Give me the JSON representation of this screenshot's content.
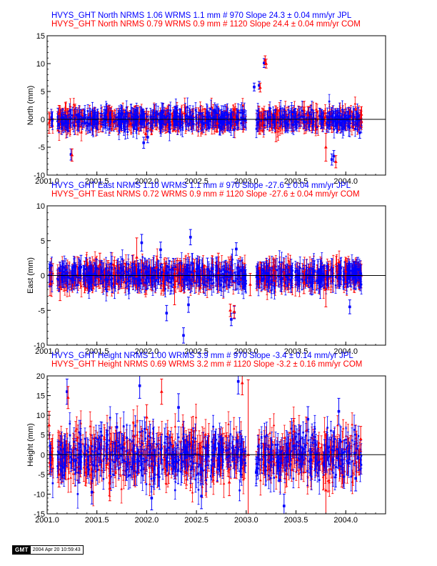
{
  "colors": {
    "jpl": "#0000ff",
    "com": "#ff0000",
    "axis": "#000000",
    "background": "#ffffff"
  },
  "stamp": {
    "logo": "GMT",
    "timestamp": "2004 Apr 20 10:59:43"
  },
  "chart_data": [
    {
      "type": "scatter",
      "component": "north",
      "titles": {
        "jpl": "HVYS_GHT North NRMS 1.06 WRMS  1.1 mm # 970 Slope   24.3 ±  0.04 mm/yr JPL",
        "com": "HVYS_GHT North NRMS 0.79 WRMS  0.9 mm # 1120 Slope   24.4 ±  0.04 mm/yr COM"
      },
      "ylabel": "North (mm)",
      "xlim": [
        2001.0,
        2004.4
      ],
      "ylim": [
        -10,
        15
      ],
      "xticks": [
        2001.0,
        2001.5,
        2002.0,
        2002.5,
        2003.0,
        2003.5,
        2004.0
      ],
      "xtick_labels": [
        "2001.0",
        "2001.5",
        "2002.0",
        "2002.5",
        "2003.0",
        "2003.5",
        "2004.0"
      ],
      "yticks": [
        -10,
        -5,
        0,
        5,
        10,
        15
      ],
      "ytick_labels": [
        "-10",
        "-5",
        "0",
        "5",
        "10",
        "15"
      ],
      "grid": false,
      "series": [
        {
          "name": "JPL",
          "marker": "square",
          "x": [
            2001.11,
            2001.24,
            2001.58,
            2001.75,
            2001.97,
            2002.01,
            2002.3,
            2002.55,
            2002.77,
            2002.98,
            2003.08,
            2003.13,
            2003.18,
            2003.24,
            2003.4,
            2003.63,
            2003.86,
            2003.88,
            2004.03,
            2004.14
          ],
          "y": [
            0.4,
            -6.3,
            0.6,
            -0.4,
            -4.2,
            -3.2,
            0.5,
            -0.5,
            0.7,
            0.1,
            5.8,
            6.1,
            10.1,
            0.3,
            -0.6,
            0.4,
            -7.2,
            -6.6,
            0.5,
            -2.4
          ],
          "err": [
            1.6,
            1.0,
            1.7,
            1.6,
            1.0,
            1.0,
            1.7,
            1.6,
            1.7,
            1.6,
            0.7,
            0.7,
            0.8,
            1.7,
            1.6,
            1.7,
            1.0,
            1.0,
            1.6,
            1.0
          ]
        },
        {
          "name": "COM",
          "marker": "triangle",
          "x": [
            2001.02,
            2001.12,
            2001.25,
            2001.61,
            2001.99,
            2002.38,
            2002.71,
            2002.88,
            2003.14,
            2003.19,
            2003.2,
            2003.3,
            2003.62,
            2003.8,
            2003.9,
            2004.15
          ],
          "y": [
            -0.6,
            1.0,
            -6.4,
            0.9,
            -2.6,
            1.1,
            -0.7,
            0.4,
            5.7,
            10.6,
            10.0,
            -1.5,
            0.8,
            -5.0,
            -7.6,
            0.2
          ],
          "err": [
            1.9,
            1.5,
            1.1,
            1.5,
            1.1,
            1.5,
            1.5,
            1.5,
            0.8,
            0.8,
            0.8,
            2.5,
            1.5,
            2.5,
            1.1,
            1.5
          ]
        }
      ]
    },
    {
      "type": "scatter",
      "component": "east",
      "titles": {
        "jpl": "HVYS_GHT East NRMS 1.10 WRMS  1.1 mm # 970 Slope  -27.6 ±  0.04 mm/yr JPL",
        "com": "HVYS_GHT East NRMS 0.72 WRMS  0.9 mm # 1120 Slope  -27.6 ±  0.04 mm/yr COM"
      },
      "ylabel": "East (mm)",
      "xlim": [
        2001.0,
        2004.4
      ],
      "ylim": [
        -10,
        10
      ],
      "xticks": [
        2001.0,
        2001.5,
        2002.0,
        2002.5,
        2003.0,
        2003.5,
        2004.0
      ],
      "xtick_labels": [
        "2001.0",
        "2001.5",
        "2002.0",
        "2002.5",
        "2003.0",
        "2003.5",
        "2004.0"
      ],
      "yticks": [
        -10,
        -5,
        0,
        5,
        10
      ],
      "ytick_labels": [
        "-10",
        "-5",
        "0",
        "5",
        "10"
      ],
      "grid": false,
      "series": [
        {
          "name": "JPL",
          "marker": "square",
          "x": [
            2001.13,
            2001.34,
            2001.6,
            2001.95,
            2002.0,
            2002.14,
            2002.2,
            2002.37,
            2002.42,
            2002.44,
            2002.61,
            2002.85,
            2002.88,
            2002.9,
            2003.2,
            2003.45,
            2003.72,
            2004.04,
            2004.12
          ],
          "y": [
            0.2,
            1.2,
            -0.6,
            4.7,
            0.5,
            3.7,
            -5.4,
            -8.6,
            -4.2,
            5.5,
            0.8,
            -6.3,
            -5.3,
            3.8,
            0.3,
            -0.7,
            0.6,
            -4.5,
            0.9
          ],
          "err": [
            1.7,
            1.7,
            1.7,
            1.2,
            1.7,
            1.1,
            1.1,
            1.1,
            1.1,
            1.1,
            1.7,
            0.9,
            0.9,
            0.9,
            1.7,
            1.7,
            1.7,
            1.0,
            1.7
          ]
        },
        {
          "name": "COM",
          "marker": "triangle",
          "x": [
            2001.03,
            2001.13,
            2001.53,
            2001.9,
            2002.1,
            2002.28,
            2002.48,
            2002.72,
            2002.84,
            2002.88,
            2003.04,
            2003.28,
            2003.58,
            2003.8,
            2004.0
          ],
          "y": [
            -1.2,
            -1.6,
            1.6,
            2.6,
            1.2,
            -1.6,
            0.7,
            0.4,
            -5.0,
            -5.2,
            -1.3,
            0.8,
            -1.0,
            -1.9,
            0.6
          ],
          "err": [
            1.7,
            2.0,
            1.6,
            2.8,
            1.6,
            2.6,
            1.6,
            2.8,
            0.9,
            0.9,
            1.6,
            1.6,
            1.6,
            2.6,
            1.6
          ]
        }
      ]
    },
    {
      "type": "scatter",
      "component": "height",
      "titles": {
        "jpl": "HVYS_GHT Height NRMS 1.00 WRMS  3.9 mm # 970 Slope   -3.4 ±  0.14 mm/yr JPL",
        "com": "HVYS_GHT Height NRMS 0.69 WRMS  3.2 mm # 1120 Slope   -3.2 ±  0.16 mm/yr COM"
      },
      "ylabel": "Height (mm)",
      "xlim": [
        2001.0,
        2004.4
      ],
      "ylim": [
        -15,
        20
      ],
      "xticks": [
        2001.0,
        2001.5,
        2002.0,
        2002.5,
        2003.0,
        2003.5,
        2004.0
      ],
      "xtick_labels": [
        "2001.0",
        "2001.5",
        "2002.0",
        "2002.5",
        "2003.0",
        "2003.5",
        "2004.0"
      ],
      "yticks": [
        -15,
        -10,
        -5,
        0,
        5,
        10,
        15,
        20
      ],
      "ytick_labels": [
        "-15",
        "-10",
        "-5",
        "0",
        "5",
        "10",
        "15",
        "20"
      ],
      "grid": false,
      "series": [
        {
          "name": "JPL",
          "marker": "square",
          "x": [
            2001.2,
            2001.45,
            2001.7,
            2001.93,
            2002.05,
            2002.32,
            2002.55,
            2002.92,
            2003.1,
            2003.38,
            2003.62,
            2003.93,
            2004.1
          ],
          "y": [
            16.0,
            -9.5,
            7.0,
            17.5,
            -11.0,
            12.0,
            -10.5,
            18.6,
            -4.5,
            -13.0,
            9.0,
            11.0,
            -6.0
          ],
          "err": [
            3.2,
            3.0,
            3.4,
            3.2,
            3.0,
            3.5,
            3.2,
            3.2,
            3.4,
            3.0,
            3.2,
            3.3,
            3.2
          ]
        },
        {
          "name": "COM",
          "marker": "triangle",
          "x": [
            2001.02,
            2001.12,
            2001.21,
            2001.63,
            2002.0,
            2002.15,
            2002.4,
            2002.83,
            2002.96,
            2003.02,
            2003.48,
            2003.8,
            2004.15
          ],
          "y": [
            7.5,
            -5.0,
            14.5,
            -8.5,
            9.5,
            16.0,
            -4.5,
            -7.0,
            18.2,
            0.0,
            6.0,
            -9.0,
            4.0
          ],
          "err": [
            3.5,
            3.2,
            2.8,
            3.2,
            3.2,
            3.2,
            3.2,
            3.4,
            3.0,
            19.0,
            3.2,
            14.0,
            3.2
          ]
        }
      ]
    }
  ]
}
